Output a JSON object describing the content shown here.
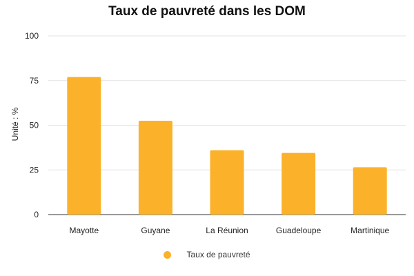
{
  "chart_data": {
    "type": "bar",
    "title": "Taux de pauvreté dans les DOM",
    "ylabel": "Unité : %",
    "xlabel": "",
    "categories": [
      "Mayotte",
      "Guyane",
      "La Réunion",
      "Guadeloupe",
      "Martinique"
    ],
    "series": [
      {
        "name": "Taux de pauvreté",
        "values": [
          77,
          52.5,
          36,
          34.5,
          26.5
        ],
        "color": "#FBB22A"
      }
    ],
    "ylim": [
      0,
      100
    ],
    "yticks": [
      "0",
      "25",
      "50",
      "75",
      "100"
    ],
    "grid": true,
    "legend_position": "bottom"
  }
}
